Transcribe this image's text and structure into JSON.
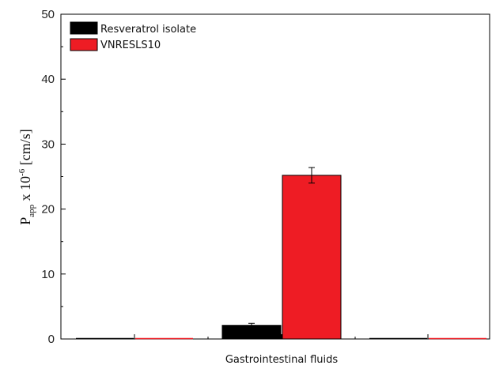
{
  "chart_data": {
    "type": "bar",
    "title": "",
    "xlabel": "Gastrointestinal fluids",
    "ylabel": {
      "base": "P",
      "sub": "app",
      "mid": " x 10",
      "sup": "-6",
      "unit": " [cm/s]"
    },
    "ylim": [
      0,
      50
    ],
    "yticks": [
      0,
      10,
      20,
      30,
      40,
      50
    ],
    "categories": [
      "Gastrointestinal fluids"
    ],
    "series": [
      {
        "name": "Resveratrol isolate",
        "values": [
          2.1
        ],
        "error": [
          0.3
        ],
        "color": "#000000"
      },
      {
        "name": "VNRESLS10",
        "values": [
          25.2
        ],
        "error": [
          1.2
        ],
        "color": "#ee1c24"
      }
    ],
    "legend_position": "top-left",
    "grid": false
  }
}
